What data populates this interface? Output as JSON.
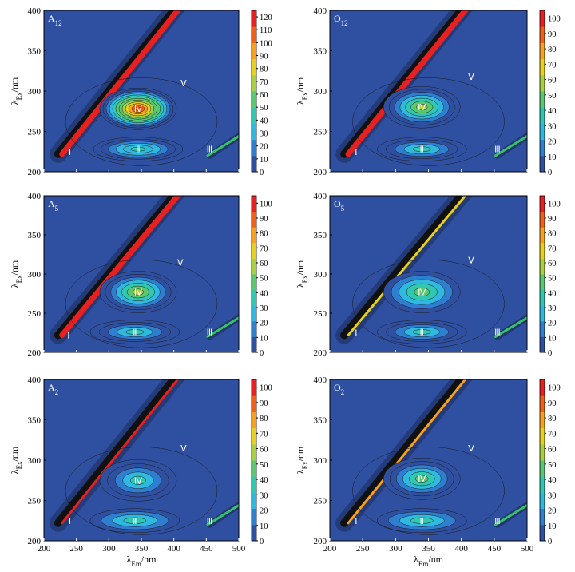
{
  "figure": {
    "x_axis_label": "λEm/nm",
    "y_axis_label": "λEx/nm",
    "x_ticks": [
      200,
      250,
      300,
      350,
      400,
      450,
      500
    ],
    "y_ticks": [
      200,
      250,
      300,
      350,
      400
    ],
    "background_color": "#2f4fa0",
    "colorscale": [
      "#2f4fa0",
      "#2f7fd0",
      "#2fb8e0",
      "#30c8b0",
      "#5ac870",
      "#a8d040",
      "#e8d020",
      "#f8a020",
      "#f06018",
      "#e82020"
    ]
  },
  "chart_data": [
    {
      "type": "heatmap",
      "panel_label": "A12",
      "x_label": "λEm/nm",
      "y_label": "λEx/nm",
      "xlim": [
        200,
        500
      ],
      "ylim": [
        200,
        400
      ],
      "colorbar_ticks": [
        0,
        10,
        20,
        30,
        40,
        50,
        60,
        70,
        80,
        90,
        100,
        110,
        120
      ],
      "colorbar_max": 125,
      "scatter_band_intensity": 125,
      "peaks": [
        {
          "label": "Ⅰ",
          "em": 240,
          "ex": 225
        },
        {
          "label": "Ⅱ",
          "em": 345,
          "ex": 228,
          "intensity": 45
        },
        {
          "label": "Ⅲ",
          "em": 455,
          "ex": 228
        },
        {
          "label": "Ⅳ",
          "em": 345,
          "ex": 278,
          "intensity": 110
        },
        {
          "label": "Ⅴ",
          "em": 415,
          "ex": 310
        }
      ]
    },
    {
      "type": "heatmap",
      "panel_label": "O12",
      "x_label": "λEm/nm",
      "y_label": "λEx/nm",
      "xlim": [
        200,
        500
      ],
      "ylim": [
        200,
        400
      ],
      "colorbar_ticks": [
        0,
        10,
        20,
        30,
        40,
        50,
        60,
        70,
        80,
        90,
        100
      ],
      "colorbar_max": 105,
      "scatter_band_intensity": 105,
      "peaks": [
        {
          "label": "Ⅰ",
          "em": 240,
          "ex": 225
        },
        {
          "label": "Ⅱ",
          "em": 340,
          "ex": 228,
          "intensity": 40
        },
        {
          "label": "Ⅲ",
          "em": 455,
          "ex": 228
        },
        {
          "label": "Ⅳ",
          "em": 340,
          "ex": 280,
          "intensity": 55
        },
        {
          "label": "Ⅴ",
          "em": 415,
          "ex": 318
        }
      ]
    },
    {
      "type": "heatmap",
      "panel_label": "A5",
      "x_label": "λEm/nm",
      "y_label": "λEx/nm",
      "xlim": [
        200,
        500
      ],
      "ylim": [
        200,
        400
      ],
      "colorbar_ticks": [
        0,
        10,
        20,
        30,
        40,
        50,
        60,
        70,
        80,
        90,
        100
      ],
      "colorbar_max": 105,
      "scatter_band_intensity": 105,
      "peaks": [
        {
          "label": "Ⅰ",
          "em": 238,
          "ex": 222
        },
        {
          "label": "Ⅱ",
          "em": 340,
          "ex": 226,
          "intensity": 40
        },
        {
          "label": "Ⅲ",
          "em": 455,
          "ex": 226
        },
        {
          "label": "Ⅳ",
          "em": 345,
          "ex": 277,
          "intensity": 62
        },
        {
          "label": "Ⅴ",
          "em": 410,
          "ex": 315
        }
      ]
    },
    {
      "type": "heatmap",
      "panel_label": "O5",
      "x_label": "λEm/nm",
      "y_label": "λEx/nm",
      "xlim": [
        200,
        500
      ],
      "ylim": [
        200,
        400
      ],
      "colorbar_ticks": [
        0,
        10,
        20,
        30,
        40,
        50,
        60,
        70,
        80,
        90,
        100
      ],
      "colorbar_max": 105,
      "scatter_band_intensity": 70,
      "peaks": [
        {
          "label": "Ⅰ",
          "em": 240,
          "ex": 225
        },
        {
          "label": "Ⅱ",
          "em": 340,
          "ex": 226,
          "intensity": 40
        },
        {
          "label": "Ⅲ",
          "em": 455,
          "ex": 226
        },
        {
          "label": "Ⅳ",
          "em": 340,
          "ex": 277,
          "intensity": 42
        },
        {
          "label": "Ⅴ",
          "em": 415,
          "ex": 318
        }
      ]
    },
    {
      "type": "heatmap",
      "panel_label": "A2",
      "x_label": "λEm/nm",
      "y_label": "λEx/nm",
      "xlim": [
        200,
        500
      ],
      "ylim": [
        200,
        400
      ],
      "colorbar_ticks": [
        0,
        10,
        20,
        30,
        40,
        50,
        60,
        70,
        80,
        90,
        100
      ],
      "colorbar_max": 105,
      "scatter_band_intensity": 95,
      "peaks": [
        {
          "label": "Ⅰ",
          "em": 240,
          "ex": 225
        },
        {
          "label": "Ⅱ",
          "em": 340,
          "ex": 225,
          "intensity": 32
        },
        {
          "label": "Ⅲ",
          "em": 455,
          "ex": 225
        },
        {
          "label": "Ⅳ",
          "em": 345,
          "ex": 275,
          "intensity": 40
        },
        {
          "label": "Ⅴ",
          "em": 415,
          "ex": 315
        }
      ]
    },
    {
      "type": "heatmap",
      "panel_label": "O2",
      "x_label": "λEm/nm",
      "y_label": "λEx/nm",
      "xlim": [
        200,
        500
      ],
      "ylim": [
        200,
        400
      ],
      "colorbar_ticks": [
        0,
        10,
        20,
        30,
        40,
        50,
        60,
        70,
        80,
        90,
        100
      ],
      "colorbar_max": 105,
      "scatter_band_intensity": 80,
      "peaks": [
        {
          "label": "Ⅰ",
          "em": 240,
          "ex": 225
        },
        {
          "label": "Ⅱ",
          "em": 340,
          "ex": 225,
          "intensity": 32
        },
        {
          "label": "Ⅲ",
          "em": 455,
          "ex": 225
        },
        {
          "label": "Ⅳ",
          "em": 340,
          "ex": 277,
          "intensity": 45
        },
        {
          "label": "Ⅴ",
          "em": 415,
          "ex": 315
        }
      ]
    }
  ]
}
